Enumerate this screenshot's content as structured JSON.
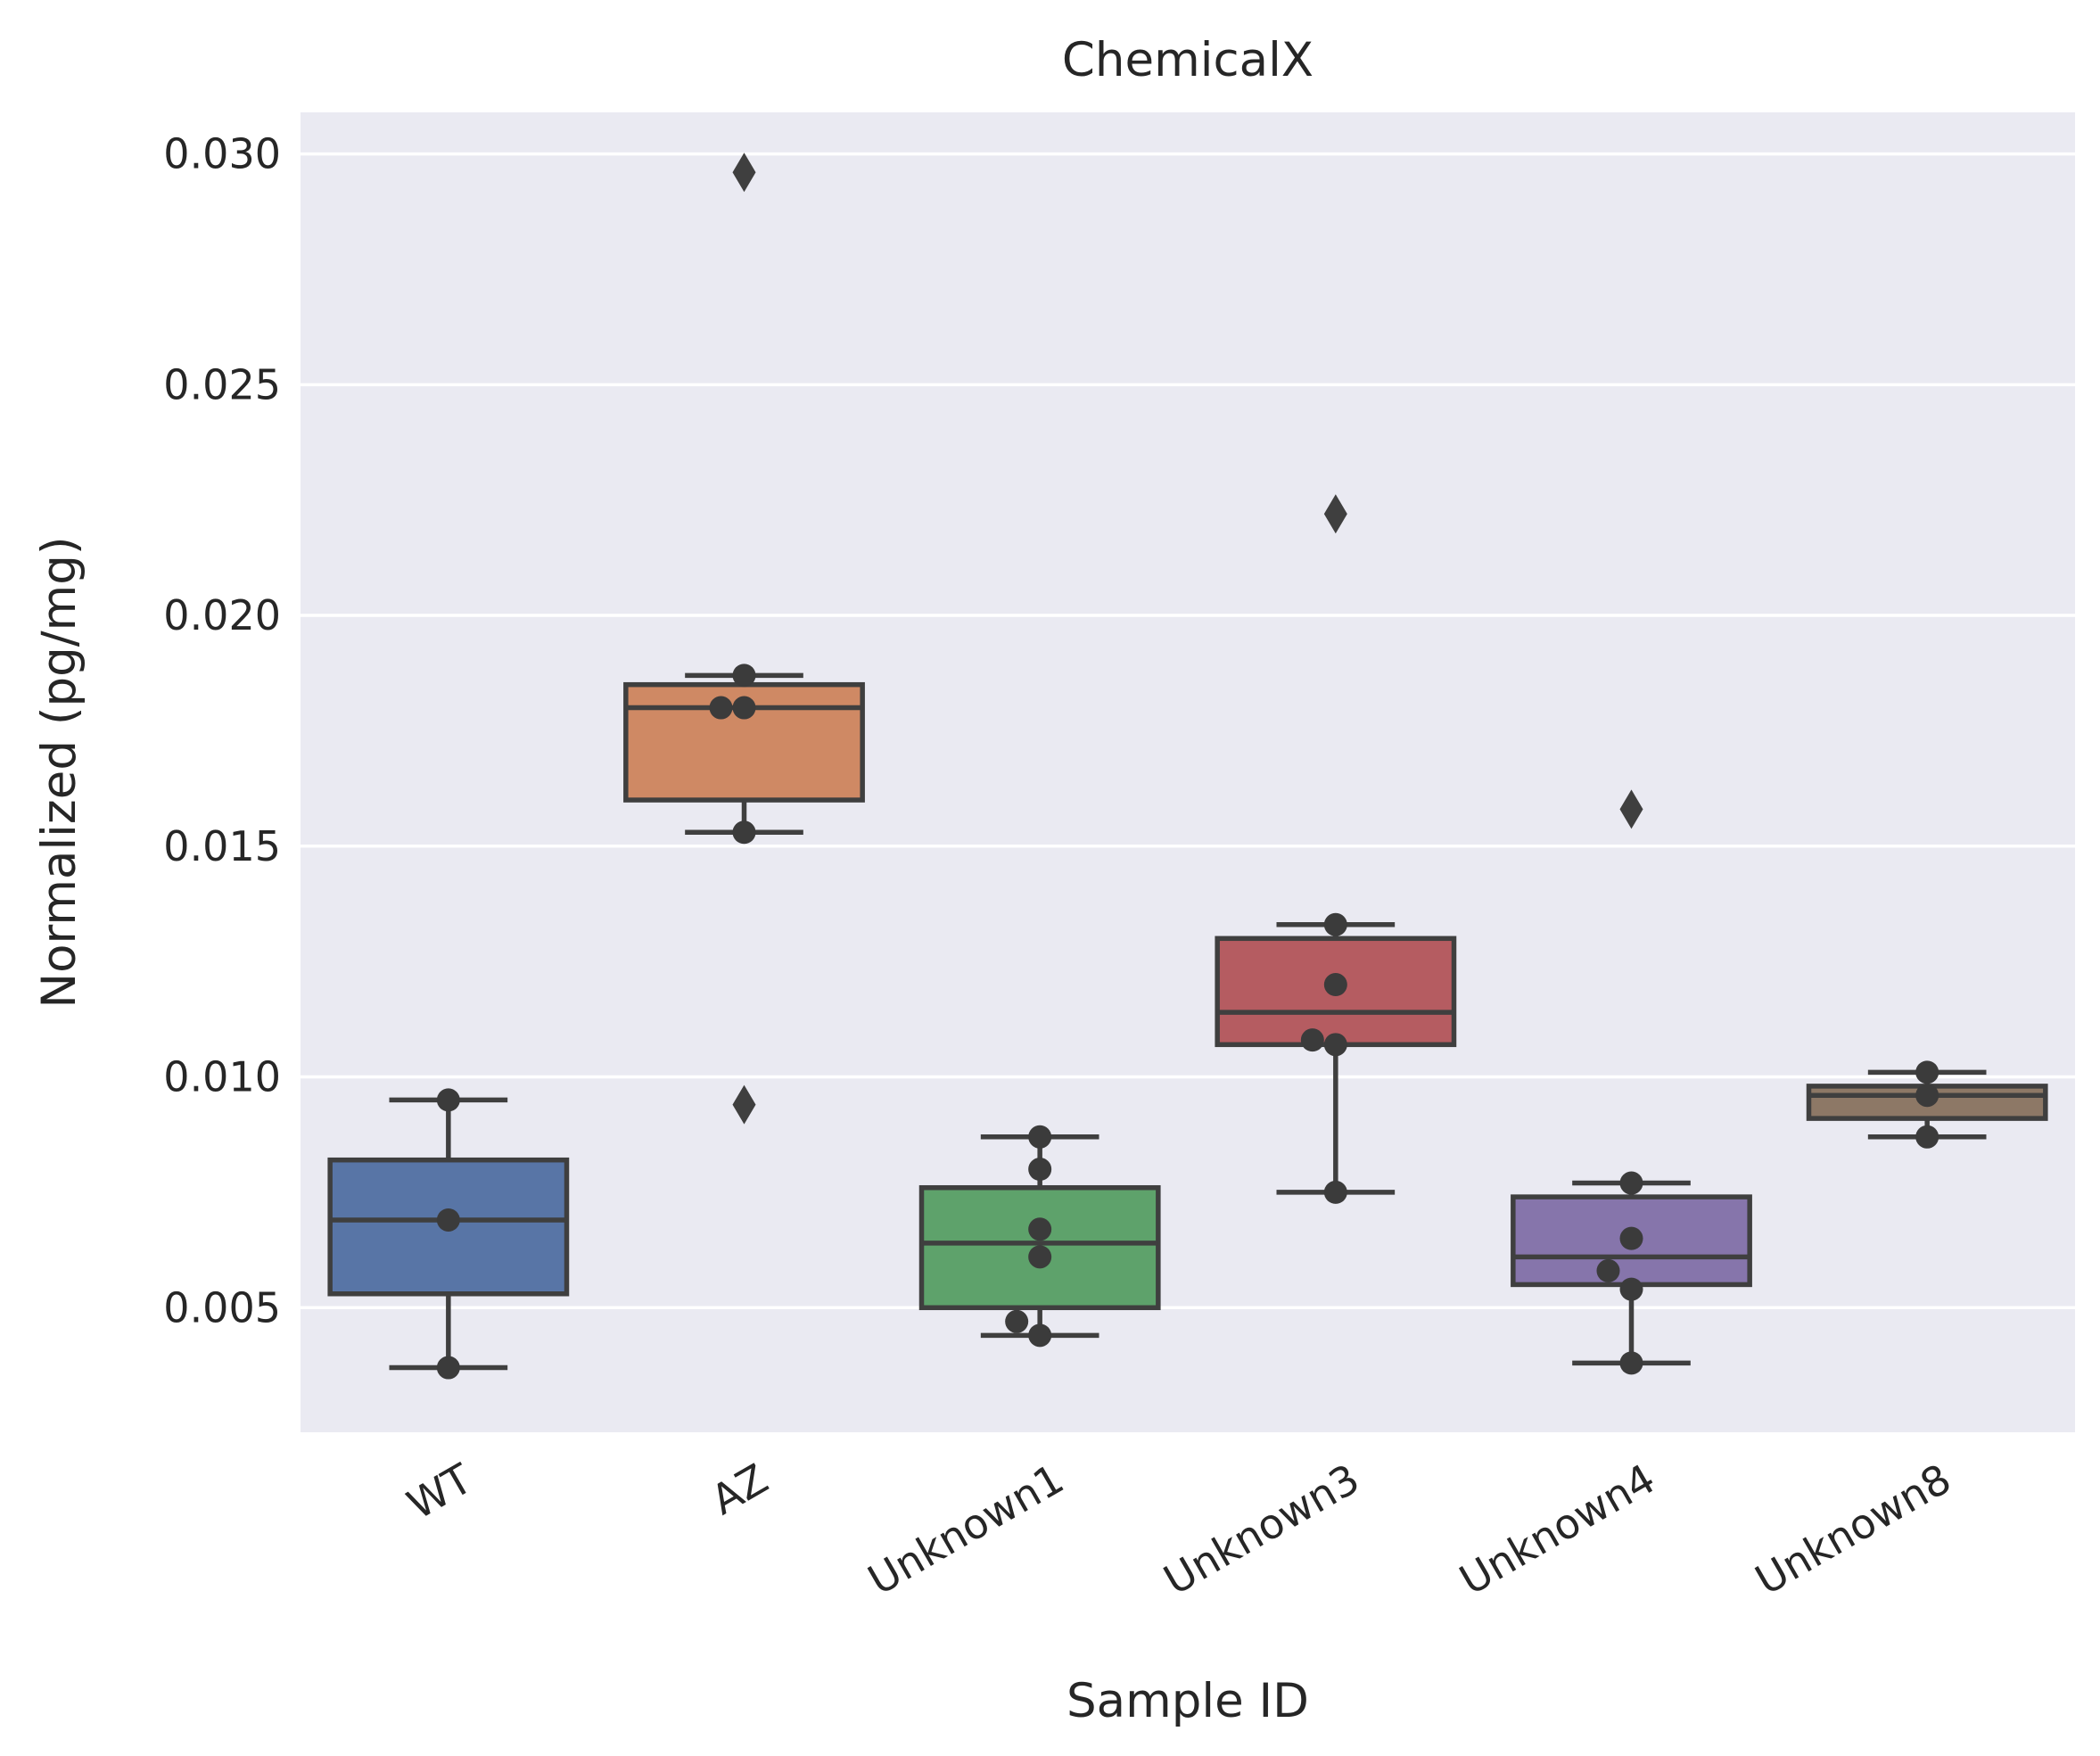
{
  "chart_data": {
    "type": "box",
    "title": "ChemicalX",
    "xlabel": "Sample ID",
    "ylabel": "Normalized (pg/mg)",
    "ylim": [
      0.0023,
      0.0309
    ],
    "yticks": [
      0.005,
      0.01,
      0.015,
      0.02,
      0.025,
      0.03
    ],
    "ytick_labels": [
      "0.005",
      "0.010",
      "0.015",
      "0.020",
      "0.025",
      "0.030"
    ],
    "grid": true,
    "background": "#eaeaf2",
    "categories": [
      "WT",
      "AZ",
      "Unknown1",
      "Unknown3",
      "Unknown4",
      "Unknown8"
    ],
    "boxes": [
      {
        "label": "WT",
        "color": "#5875a6",
        "whisker_low": 0.0037,
        "q1": 0.0053,
        "median": 0.0069,
        "q3": 0.0082,
        "whisker_high": 0.0095,
        "outliers": [],
        "points": [
          0.0037,
          0.0069,
          0.0095
        ]
      },
      {
        "label": "AZ",
        "color": "#cf8964",
        "whisker_low": 0.0153,
        "q1": 0.016,
        "median": 0.018,
        "q3": 0.0185,
        "whisker_high": 0.0187,
        "outliers": [
          0.0296,
          0.0094
        ],
        "points": [
          0.0153,
          0.018,
          0.018,
          0.0187
        ]
      },
      {
        "label": "Unknown1",
        "color": "#5ea26b",
        "whisker_low": 0.0044,
        "q1": 0.005,
        "median": 0.0064,
        "q3": 0.0076,
        "whisker_high": 0.0087,
        "outliers": [],
        "points": [
          0.0044,
          0.0047,
          0.0061,
          0.0067,
          0.008,
          0.0087
        ]
      },
      {
        "label": "Unknown3",
        "color": "#b55c61",
        "whisker_low": 0.0075,
        "q1": 0.0107,
        "median": 0.0114,
        "q3": 0.013,
        "whisker_high": 0.0133,
        "outliers": [
          0.0222
        ],
        "points": [
          0.0075,
          0.0107,
          0.0108,
          0.012,
          0.0133
        ]
      },
      {
        "label": "Unknown4",
        "color": "#8675ab",
        "whisker_low": 0.0038,
        "q1": 0.0055,
        "median": 0.0061,
        "q3": 0.0074,
        "whisker_high": 0.0077,
        "outliers": [
          0.0158
        ],
        "points": [
          0.0038,
          0.0054,
          0.0058,
          0.0065,
          0.0077
        ]
      },
      {
        "label": "Unknown8",
        "color": "#8d7866",
        "whisker_low": 0.0087,
        "q1": 0.0091,
        "median": 0.0096,
        "q3": 0.0098,
        "whisker_high": 0.0101,
        "outliers": [],
        "points": [
          0.0087,
          0.0096,
          0.0101
        ]
      }
    ]
  }
}
